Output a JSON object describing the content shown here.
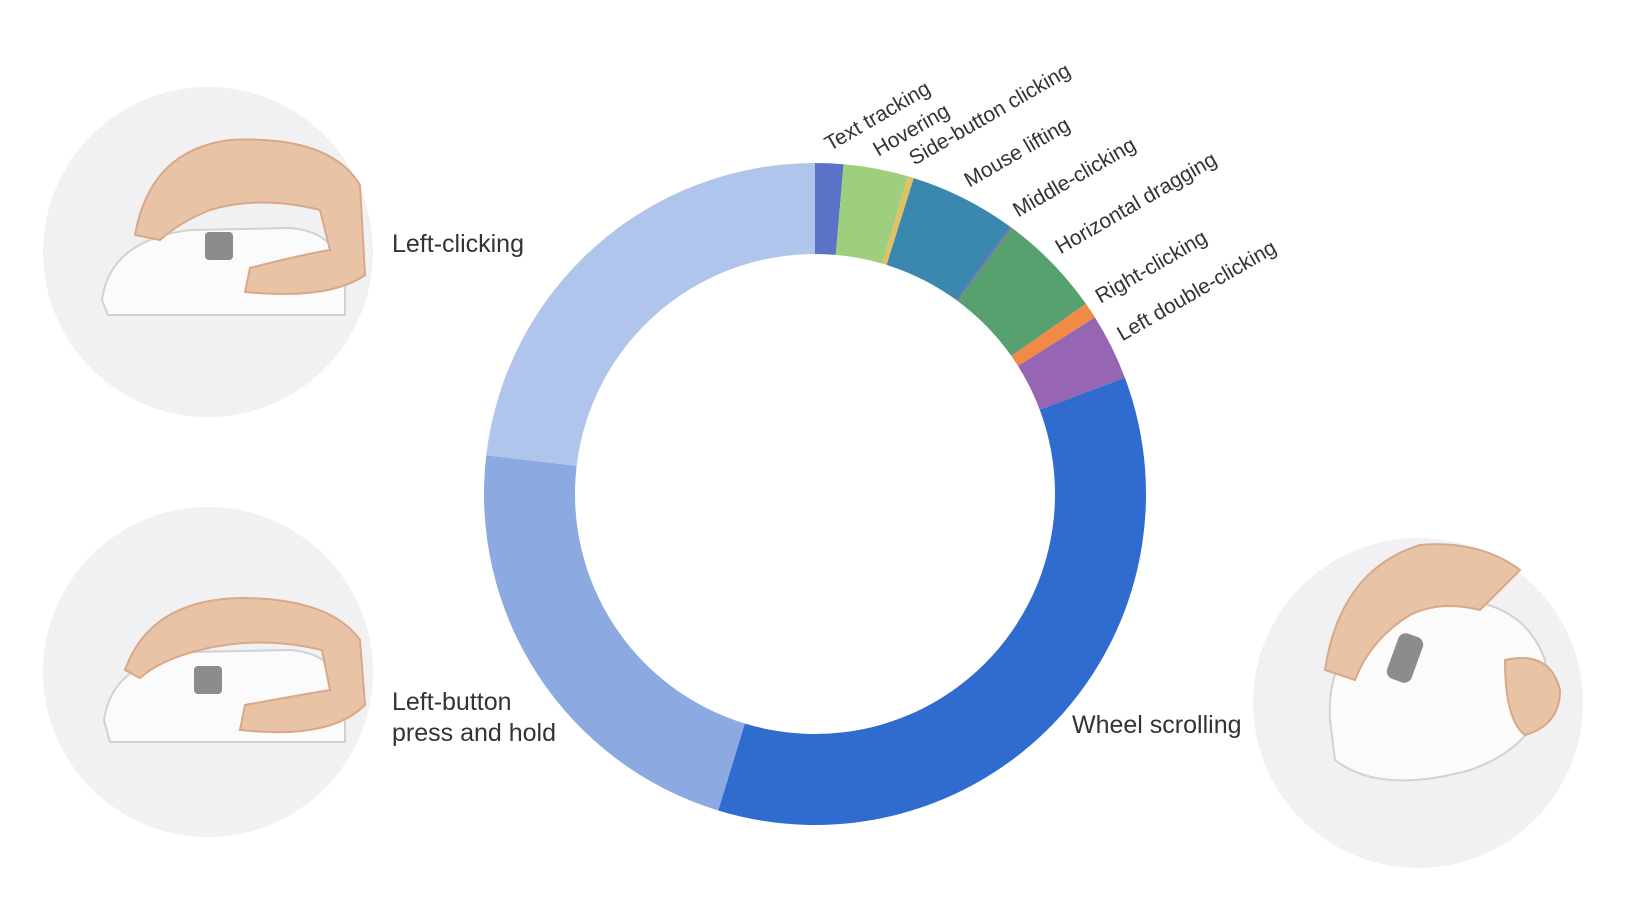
{
  "chart_data": {
    "type": "donut",
    "categories": [
      "Text tracking",
      "Hovering",
      "Side-button clicking",
      "Mouse lifting",
      "Middle-clicking",
      "Horizontal dragging",
      "Right-clicking",
      "Left double-clicking",
      "Wheel scrolling",
      "Left-button press and hold",
      "Left-clicking"
    ],
    "values": [
      1.4,
      3.2,
      0.3,
      5.3,
      0.1,
      5.2,
      0.8,
      3.3,
      36.0,
      22.5,
      23.5
    ],
    "unit": "%",
    "colors": [
      "#5a73c6",
      "#a0ce7f",
      "#e0c35e",
      "#3a88b0",
      "#7a6fa5",
      "#57a070",
      "#f08a45",
      "#9665b4",
      "#306bd0",
      "#8ca9e1",
      "#b0c5ec"
    ],
    "big_labels": {
      "Left-clicking": "Left-clicking",
      "Left-button press and hold": [
        "Left-button",
        "press and hold"
      ],
      "Wheel scrolling": "Wheel scrolling"
    },
    "small_labels": [
      "Text tracking",
      "Hovering",
      "Side-button clicking",
      "Mouse lifting",
      "Middle-clicking",
      "Horizontal dragging",
      "Right-clicking",
      "Left double-clicking"
    ],
    "photos": [
      {
        "icon": "hand-on-mouse-left-click-icon",
        "caption": "Left-clicking"
      },
      {
        "icon": "hand-on-mouse-press-hold-icon",
        "caption": "Left-button press and hold"
      },
      {
        "icon": "hand-on-mouse-wheel-scroll-icon",
        "caption": "Wheel scrolling"
      }
    ]
  }
}
